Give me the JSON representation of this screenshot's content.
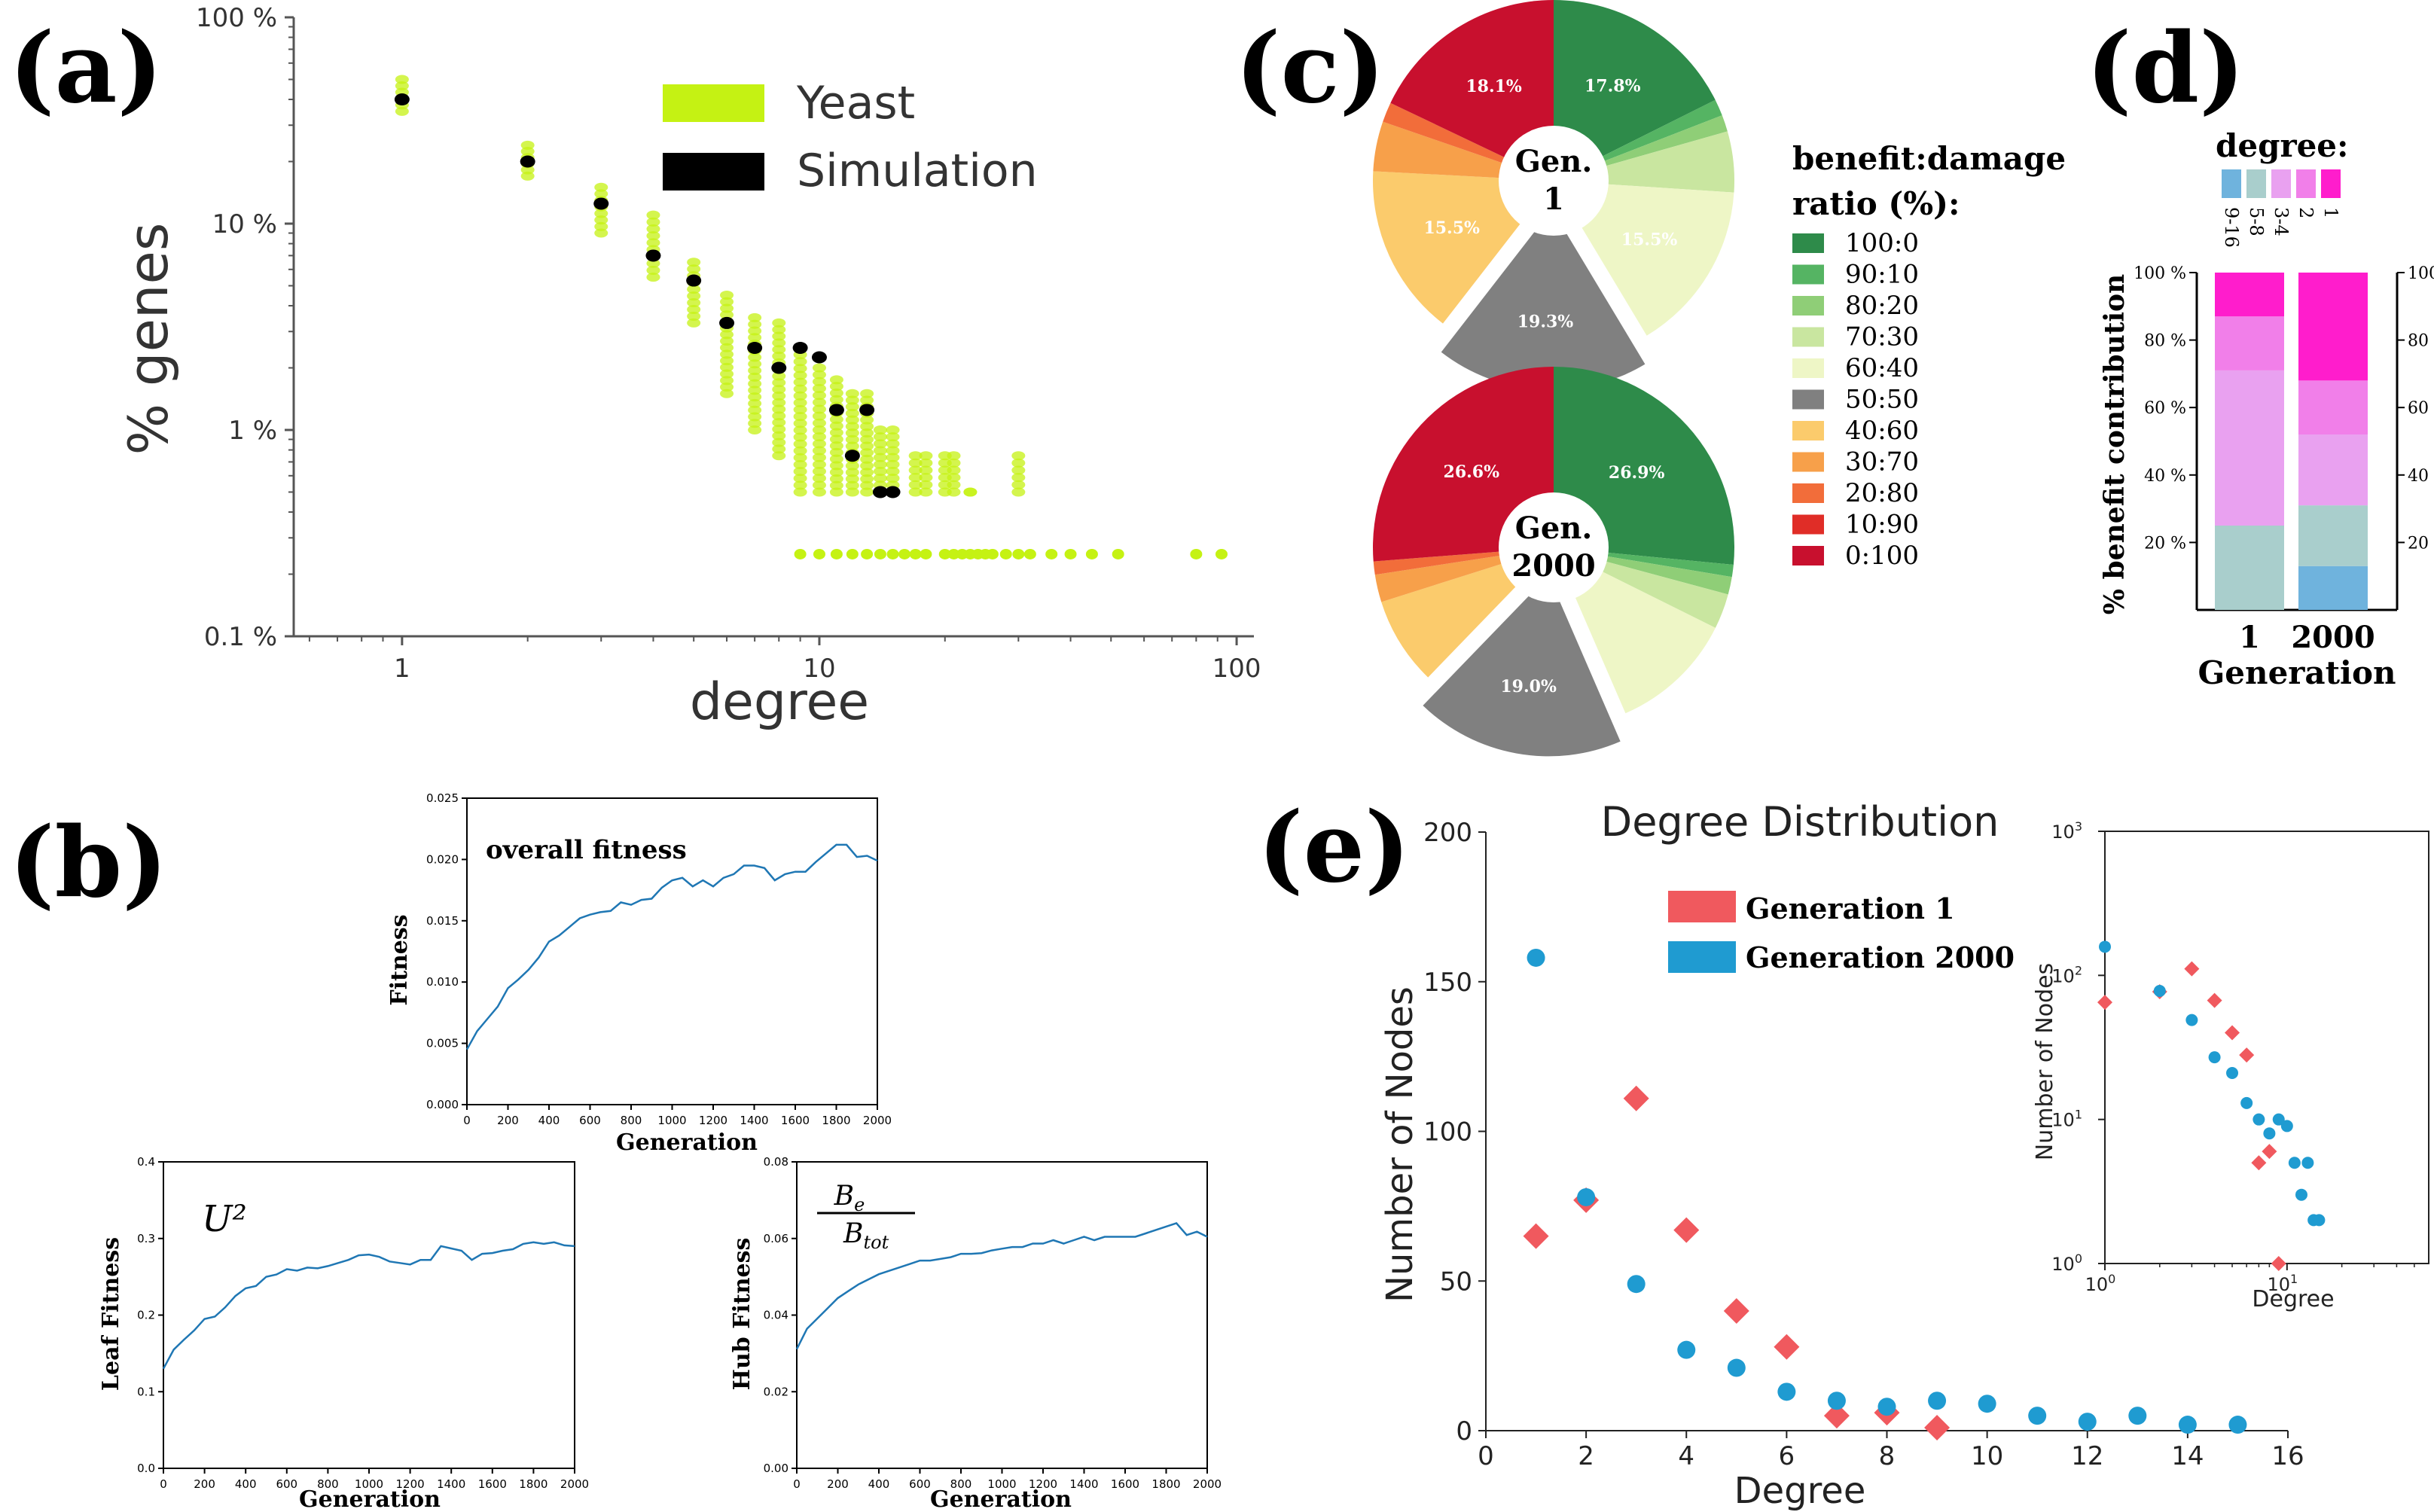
{
  "panels": {
    "a": "(a)",
    "b": "(b)",
    "c": "(c)",
    "d": "(d)",
    "e": "(e)"
  },
  "chart_data": [
    {
      "id": "a",
      "type": "scatter",
      "xlabel": "degree",
      "ylabel": "% genes",
      "xscale": "log",
      "yscale": "log",
      "xlim": [
        0.55,
        110
      ],
      "ylim": [
        0.1,
        100
      ],
      "xticks": [
        {
          "v": 1,
          "label": "1"
        },
        {
          "v": 10,
          "label": "10"
        },
        {
          "v": 100,
          "label": "100"
        }
      ],
      "yticks": [
        {
          "v": 0.1,
          "label": "0.1 %"
        },
        {
          "v": 1,
          "label": "1 %"
        },
        {
          "v": 10,
          "label": "10 %"
        },
        {
          "v": 100,
          "label": "100 %"
        }
      ],
      "legend": {
        "placement": "top-right",
        "entries": [
          {
            "name": "Yeast",
            "color": "#c5f213"
          },
          {
            "name": "Simulation",
            "color": "#000000"
          }
        ]
      },
      "series": [
        {
          "name": "Simulation",
          "color": "#000000",
          "x": [
            1,
            2,
            3,
            4,
            5,
            6,
            7,
            8,
            9,
            10,
            11,
            13,
            12,
            14,
            15
          ],
          "y": [
            40,
            20,
            12.5,
            7,
            5.3,
            3.3,
            2.5,
            2,
            2.5,
            2.25,
            1.25,
            1.25,
            0.75,
            0.5,
            0.5
          ]
        },
        {
          "name": "Yeast",
          "color": "#c5f213",
          "columns": [
            {
              "x": 1,
              "ymin": 35,
              "ymax": 50
            },
            {
              "x": 2,
              "ymin": 17,
              "ymax": 24
            },
            {
              "x": 3,
              "ymin": 9,
              "ymax": 15
            },
            {
              "x": 4,
              "ymin": 5.5,
              "ymax": 11
            },
            {
              "x": 5,
              "ymin": 3.3,
              "ymax": 6.5
            },
            {
              "x": 6,
              "ymin": 1.5,
              "ymax": 4.5
            },
            {
              "x": 7,
              "ymin": 1,
              "ymax": 3.5
            },
            {
              "x": 8,
              "ymin": 0.75,
              "ymax": 3.3
            },
            {
              "x": 9,
              "ymin": 0.5,
              "ymax": 2.5
            },
            {
              "x": 10,
              "ymin": 0.5,
              "ymax": 2
            },
            {
              "x": 11,
              "ymin": 0.5,
              "ymax": 1.75
            },
            {
              "x": 12,
              "ymin": 0.5,
              "ymax": 1.5
            },
            {
              "x": 13,
              "ymin": 0.5,
              "ymax": 1.5
            },
            {
              "x": 14,
              "ymin": 0.5,
              "ymax": 1
            },
            {
              "x": 15,
              "ymin": 0.5,
              "ymax": 1
            },
            {
              "x": 17,
              "ymin": 0.5,
              "ymax": 0.75
            },
            {
              "x": 18,
              "ymin": 0.5,
              "ymax": 0.75
            },
            {
              "x": 20,
              "ymin": 0.5,
              "ymax": 0.75
            },
            {
              "x": 21,
              "ymin": 0.5,
              "ymax": 0.75
            },
            {
              "x": 23,
              "ymin": 0.5,
              "ymax": 0.5
            },
            {
              "x": 30,
              "ymin": 0.5,
              "ymax": 0.75
            }
          ],
          "tail": {
            "y": 0.25,
            "x": [
              9,
              10,
              11,
              12,
              13,
              14,
              15,
              16,
              17,
              18,
              20,
              21,
              22,
              23,
              24,
              25,
              26,
              28,
              30,
              32,
              36,
              40,
              45,
              52,
              80,
              92
            ]
          }
        }
      ]
    },
    {
      "id": "b1",
      "type": "line",
      "title": "overall fitness",
      "xlabel": "Generation",
      "ylabel": "Fitness",
      "xlim": [
        0,
        2000
      ],
      "ylim": [
        0,
        0.025
      ],
      "xticks": [
        "0",
        "200",
        "400",
        "600",
        "800",
        "1000",
        "1200",
        "1400",
        "1600",
        "1800",
        "2000"
      ],
      "yticks": [
        "0.000",
        "0.005",
        "0.010",
        "0.015",
        "0.020",
        "0.025"
      ],
      "color": "#1f77b4",
      "x": [
        0,
        50,
        100,
        150,
        200,
        250,
        300,
        350,
        400,
        450,
        500,
        550,
        600,
        650,
        700,
        750,
        800,
        850,
        900,
        950,
        1000,
        1050,
        1100,
        1150,
        1200,
        1250,
        1300,
        1350,
        1400,
        1450,
        1500,
        1550,
        1600,
        1650,
        1700,
        1750,
        1800,
        1850,
        1900,
        1950,
        2000
      ],
      "y": [
        0.0045,
        0.006,
        0.007,
        0.008,
        0.0095,
        0.0102,
        0.011,
        0.012,
        0.0133,
        0.0138,
        0.0145,
        0.0152,
        0.0155,
        0.0157,
        0.0158,
        0.0165,
        0.0163,
        0.0167,
        0.0168,
        0.0177,
        0.0183,
        0.0185,
        0.0178,
        0.0183,
        0.0178,
        0.0185,
        0.0188,
        0.0195,
        0.0195,
        0.0193,
        0.0183,
        0.0188,
        0.019,
        0.019,
        0.0198,
        0.0205,
        0.0212,
        0.0212,
        0.0202,
        0.0203,
        0.0199
      ]
    },
    {
      "id": "b2",
      "type": "line",
      "title": "U²",
      "xlabel": "Generation",
      "ylabel": "Leaf Fitness",
      "xlim": [
        0,
        2000
      ],
      "ylim": [
        0,
        0.4
      ],
      "xticks": [
        "0",
        "200",
        "400",
        "600",
        "800",
        "1000",
        "1200",
        "1400",
        "1600",
        "1800",
        "2000"
      ],
      "yticks": [
        "0.0",
        "0.1",
        "0.2",
        "0.3",
        "0.4"
      ],
      "color": "#1f77b4",
      "x": [
        0,
        50,
        100,
        150,
        200,
        250,
        300,
        350,
        400,
        450,
        500,
        550,
        600,
        650,
        700,
        750,
        800,
        850,
        900,
        950,
        1000,
        1050,
        1100,
        1150,
        1200,
        1250,
        1300,
        1350,
        1400,
        1450,
        1500,
        1550,
        1600,
        1650,
        1700,
        1750,
        1800,
        1850,
        1900,
        1950,
        2000
      ],
      "y": [
        0.13,
        0.155,
        0.168,
        0.18,
        0.195,
        0.198,
        0.21,
        0.225,
        0.235,
        0.238,
        0.25,
        0.253,
        0.26,
        0.258,
        0.262,
        0.261,
        0.264,
        0.268,
        0.272,
        0.278,
        0.279,
        0.276,
        0.27,
        0.268,
        0.266,
        0.272,
        0.272,
        0.29,
        0.287,
        0.284,
        0.272,
        0.28,
        0.281,
        0.284,
        0.286,
        0.293,
        0.295,
        0.293,
        0.295,
        0.291,
        0.29
      ]
    },
    {
      "id": "b3",
      "type": "line",
      "title": "Bₑ / B_tot",
      "title_num": "B",
      "title_num_sub": "e",
      "title_den": "B",
      "title_den_sub": "tot",
      "xlabel": "Generation",
      "ylabel": "Hub Fitness",
      "xlim": [
        0,
        2000
      ],
      "ylim": [
        0,
        0.09
      ],
      "xticks": [
        "0",
        "200",
        "400",
        "600",
        "800",
        "1000",
        "1200",
        "1400",
        "1600",
        "1800",
        "2000"
      ],
      "yticks": [
        "0.00",
        "0.02",
        "0.04",
        "0.06",
        "0.08"
      ],
      "color": "#1f77b4",
      "x": [
        0,
        50,
        100,
        150,
        200,
        250,
        300,
        350,
        400,
        450,
        500,
        550,
        600,
        650,
        700,
        750,
        800,
        850,
        900,
        950,
        1000,
        1050,
        1100,
        1150,
        1200,
        1250,
        1300,
        1350,
        1400,
        1450,
        1500,
        1550,
        1600,
        1650,
        1700,
        1750,
        1800,
        1850,
        1900,
        1950,
        2000
      ],
      "y": [
        0.035,
        0.041,
        0.044,
        0.047,
        0.05,
        0.052,
        0.054,
        0.0555,
        0.057,
        0.058,
        0.059,
        0.06,
        0.061,
        0.061,
        0.0615,
        0.062,
        0.063,
        0.063,
        0.0632,
        0.064,
        0.0645,
        0.065,
        0.065,
        0.066,
        0.066,
        0.067,
        0.066,
        0.067,
        0.068,
        0.067,
        0.068,
        0.068,
        0.068,
        0.068,
        0.069,
        0.07,
        0.071,
        0.072,
        0.0685,
        0.0695,
        0.068
      ]
    },
    {
      "id": "c",
      "type": "pie",
      "legend_title": [
        "benefit:damage",
        "ratio (%):"
      ],
      "legend": [
        {
          "label": "100:0",
          "color": "#2e8b4a"
        },
        {
          "label": "90:10",
          "color": "#55b463"
        },
        {
          "label": "80:20",
          "color": "#8fce77"
        },
        {
          "label": "70:30",
          "color": "#c9e6a0"
        },
        {
          "label": "60:40",
          "color": "#eef6c6"
        },
        {
          "label": "50:50",
          "color": "#808080"
        },
        {
          "label": "40:60",
          "color": "#fbcb6c"
        },
        {
          "label": "30:70",
          "color": "#f7a04a"
        },
        {
          "label": "20:80",
          "color": "#f26d3a"
        },
        {
          "label": "10:90",
          "color": "#e02d27"
        },
        {
          "label": "0:100",
          "color": "#c8102e"
        }
      ],
      "pies": [
        {
          "center": [
            "Gen.",
            "1"
          ],
          "slices": [
            {
              "category": "100:0",
              "value": 17.8,
              "label": "17.8%"
            },
            {
              "category": "90:10",
              "value": 1.5,
              "label": ""
            },
            {
              "category": "80:20",
              "value": 1.5,
              "label": ""
            },
            {
              "category": "70:30",
              "value": 5.5,
              "label": ""
            },
            {
              "category": "60:40",
              "value": 15.5,
              "label": "15.5%"
            },
            {
              "category": "50:50",
              "value": 19.3,
              "label": "19.3%"
            },
            {
              "category": "40:60",
              "value": 15.5,
              "label": "15.5%"
            },
            {
              "category": "30:70",
              "value": 4.5,
              "label": ""
            },
            {
              "category": "20:80",
              "value": 1.8,
              "label": ""
            },
            {
              "category": "10:90",
              "value": 0,
              "label": ""
            },
            {
              "category": "0:100",
              "value": 18.1,
              "label": "18.1%"
            }
          ]
        },
        {
          "center": [
            "Gen.",
            "2000"
          ],
          "slices": [
            {
              "category": "100:0",
              "value": 26.9,
              "label": "26.9%"
            },
            {
              "category": "90:10",
              "value": 1.1,
              "label": ""
            },
            {
              "category": "80:20",
              "value": 1.6,
              "label": ""
            },
            {
              "category": "70:30",
              "value": 3.2,
              "label": ""
            },
            {
              "category": "60:40",
              "value": 11.3,
              "label": ""
            },
            {
              "category": "50:50",
              "value": 19.0,
              "label": "19.0%"
            },
            {
              "category": "40:60",
              "value": 8.0,
              "label": ""
            },
            {
              "category": "30:70",
              "value": 2.5,
              "label": ""
            },
            {
              "category": "20:80",
              "value": 1.2,
              "label": ""
            },
            {
              "category": "10:90",
              "value": 0,
              "label": ""
            },
            {
              "category": "0:100",
              "value": 26.6,
              "label": "26.6%"
            }
          ]
        }
      ]
    },
    {
      "id": "d",
      "type": "bar",
      "stacked": true,
      "xlabel": "Generation",
      "ylabel": "% benefit contribution",
      "categories": [
        "1",
        "2000"
      ],
      "yticks": [
        "20 %",
        "40 %",
        "60 %",
        "80 %",
        "100 %"
      ],
      "legend_title": "degree:",
      "series": [
        {
          "name": "9-16",
          "color": "#6fb3dd",
          "values": [
            0,
            13
          ]
        },
        {
          "name": "5-8",
          "color": "#a9cecc",
          "values": [
            25,
            18
          ]
        },
        {
          "name": "3-4",
          "color": "#e9a1f0",
          "values": [
            46,
            21
          ]
        },
        {
          "name": "2",
          "color": "#f17fe9",
          "values": [
            16,
            16
          ]
        },
        {
          "name": "1",
          "color": "#ff1dcc",
          "values": [
            13,
            32
          ]
        }
      ]
    },
    {
      "id": "e",
      "type": "scatter",
      "title": "Degree Distribution",
      "xlabel": "Degree",
      "ylabel": "Number of Nodes",
      "xlim": [
        0,
        16
      ],
      "ylim": [
        0,
        200
      ],
      "xticks": [
        "0",
        "2",
        "4",
        "6",
        "8",
        "10",
        "12",
        "14",
        "16"
      ],
      "yticks": [
        "0",
        "50",
        "100",
        "150",
        "200"
      ],
      "legend": {
        "placement": "top-center"
      },
      "series": [
        {
          "name": "Generation 1",
          "color": "#f0595e",
          "marker": "diamond",
          "x": [
            1,
            2,
            3,
            4,
            5,
            6,
            7,
            8,
            9
          ],
          "y": [
            65,
            77,
            111,
            67,
            40,
            28,
            5,
            6,
            1
          ]
        },
        {
          "name": "Generation 2000",
          "color": "#1f9bd1",
          "marker": "circle",
          "x": [
            1,
            2,
            3,
            4,
            5,
            6,
            7,
            8,
            9,
            10,
            11,
            12,
            13,
            14,
            15
          ],
          "y": [
            158,
            78,
            49,
            27,
            21,
            13,
            10,
            8,
            10,
            9,
            5,
            3,
            5,
            2,
            2
          ]
        }
      ],
      "inset": {
        "type": "scatter",
        "xscale": "log",
        "yscale": "log",
        "xlabel": "Degree",
        "ylabel": "Number of Nodes",
        "xlim": [
          1,
          60
        ],
        "ylim": [
          1,
          1000
        ],
        "xticks": [
          {
            "v": 1,
            "base": "10",
            "exp": "0"
          },
          {
            "v": 10,
            "base": "10",
            "exp": "1"
          }
        ],
        "yticks": [
          {
            "v": 1,
            "base": "10",
            "exp": "0"
          },
          {
            "v": 10,
            "base": "10",
            "exp": "1"
          },
          {
            "v": 100,
            "base": "10",
            "exp": "2"
          },
          {
            "v": 1000,
            "base": "10",
            "exp": "3"
          }
        ]
      }
    }
  ]
}
